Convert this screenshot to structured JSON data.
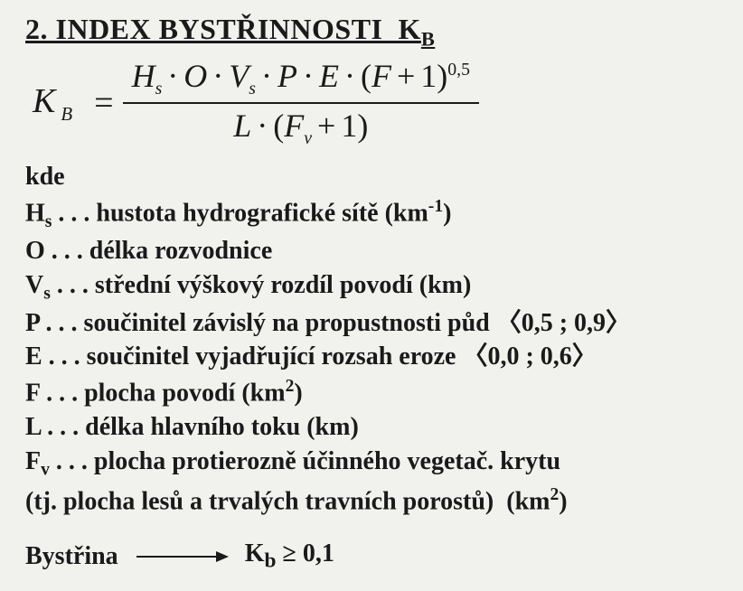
{
  "colors": {
    "bg": "#f1f1ee",
    "text": "#1a1a1a"
  },
  "typography": {
    "family": "Times New Roman",
    "title_pt": 32,
    "body_pt": 28,
    "formula_pt": 38
  },
  "title": {
    "number": "2.",
    "text": "INDEX BYSTŘINNOSTI",
    "symbol_base": "K",
    "symbol_sub": "B"
  },
  "formula": {
    "lhs_base": "K",
    "lhs_sub": "B",
    "eq": "=",
    "num": "H<span class=\"ssub\">s</span><span class=\"op\">·</span>O<span class=\"op\">·</span>V<span class=\"ssub\">s</span><span class=\"op\">·</span>P<span class=\"op\">·</span>E<span class=\"op\">·</span><span class=\"upright\">(</span>F<span class=\"op\">+</span><span class=\"upright\">1</span><span class=\"upright\">)</span><span class=\"ssup\">0,5</span>",
    "den": "L<span class=\"op\">·</span><span class=\"upright\">(</span>F<span class=\"ssub\">v</span><span class=\"op\">+</span><span class=\"upright\">1</span><span class=\"upright\">)</span>"
  },
  "kde": "kde",
  "defs": [
    "H<sub>s</sub> . . . hustota hydrografické sítě (km<sup>-1</sup>)",
    "O . . . délka rozvodnice",
    "V<sub>s</sub> . . . střední výškový rozdíl povodí (km)",
    "P . . . součinitel závislý na propustnosti půd 〈0,5 ; 0,9〉",
    "E . . . součinitel vyjadřující rozsah eroze 〈0,0 ; 0,6〉",
    "F . . . plocha povodí (km<sup>2</sup>)",
    "L . . . délka hlavního toku (km)",
    "F<sub>v</sub> . . . plocha protierozně účinného vegetač. krytu",
    "(tj. plocha lesů a trvalých travních porostů)&nbsp;&nbsp;(km<sup>2</sup>)"
  ],
  "result": {
    "label": "Bystřina",
    "cond": "K<sub>b</sub> ≥ 0,1"
  }
}
